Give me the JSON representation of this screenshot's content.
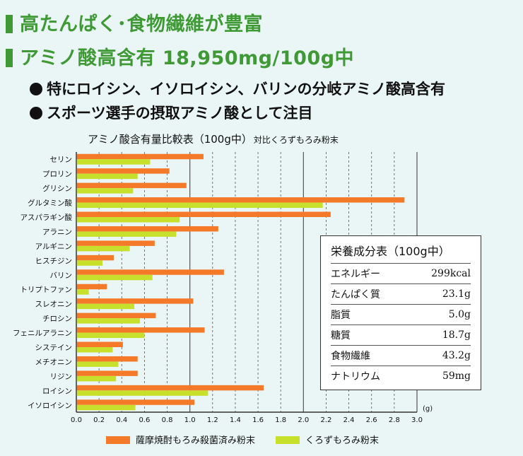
{
  "headings": {
    "h1": "高たんぱく･食物繊維が豊富",
    "h2": "アミノ酸高含有 18,950mg/100g中"
  },
  "bullets": [
    "特にロイシン、イソロイシン、バリンの分岐アミノ酸高含有",
    "スポーツ選手の摂取アミノ酸として注目"
  ],
  "chart_data": {
    "type": "bar",
    "orientation": "horizontal",
    "title": "アミノ酸含有量比較表（100g中）",
    "subtitle": "対比くろずもろみ粉末",
    "xlabel": "(g)",
    "xlim": [
      0,
      3.0
    ],
    "xticks": [
      "0.0",
      "0.2",
      "0.4",
      "0.6",
      "0.8",
      "1.0",
      "1.2",
      "1.4",
      "1.6",
      "1.8",
      "2.0",
      "2.2",
      "2.4",
      "2.6",
      "2.8",
      "3.0"
    ],
    "categories": [
      "セリン",
      "プロリン",
      "グリシン",
      "グルタミン酸",
      "アスパラギン酸",
      "アラニン",
      "アルギニン",
      "ヒスチジン",
      "バリン",
      "トリプトファン",
      "スレオニン",
      "チロシン",
      "フェニルアラニン",
      "システイン",
      "メチオニン",
      "リジン",
      "ロイシン",
      "イソロイシン"
    ],
    "series": [
      {
        "name": "薩摩焼酎もろみ殺菌済み粉末",
        "color": "#f47a2a",
        "values": [
          1.12,
          0.82,
          0.97,
          2.89,
          2.24,
          1.25,
          0.69,
          0.33,
          1.3,
          0.27,
          1.03,
          0.7,
          1.13,
          0.41,
          0.54,
          0.54,
          1.65,
          1.04
        ]
      },
      {
        "name": "くろずもろみ粉末",
        "color": "#c6e02c",
        "values": [
          0.65,
          0.54,
          0.5,
          2.17,
          0.91,
          0.88,
          0.47,
          0.23,
          0.67,
          0.11,
          0.51,
          0.56,
          0.6,
          0.32,
          0.37,
          0.35,
          1.16,
          0.52
        ]
      }
    ],
    "grid": true,
    "legend": "bottom"
  },
  "nutrition": {
    "title": "栄養成分表（100g中）",
    "rows": [
      {
        "label": "エネルギー",
        "value": "299kcal"
      },
      {
        "label": "たんぱく質",
        "value": "23.1g"
      },
      {
        "label": "脂質",
        "value": "5.0g"
      },
      {
        "label": "糖質",
        "value": "18.7g"
      },
      {
        "label": "食物繊維",
        "value": "43.2g"
      },
      {
        "label": "ナトリウム",
        "value": "59mg"
      }
    ]
  }
}
